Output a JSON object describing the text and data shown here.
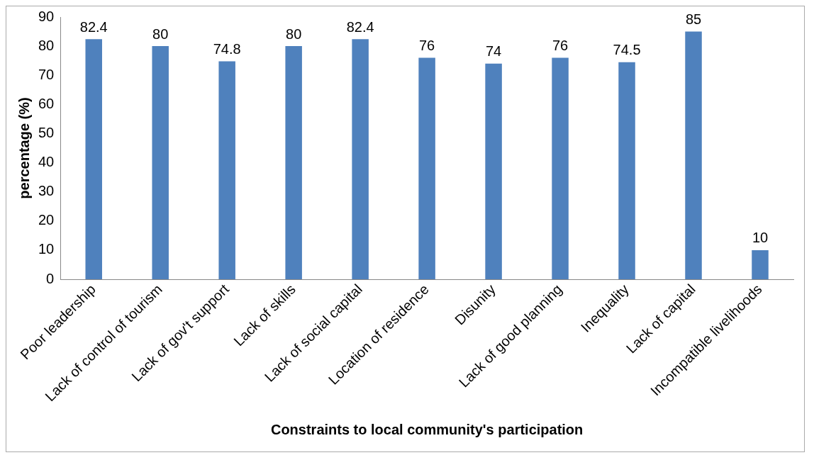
{
  "chart_data": {
    "type": "bar",
    "xlabel": "Constraints to local community's participation",
    "ylabel": "percentage (%)",
    "categories": [
      "Poor leadership",
      "Lack of control of tourism",
      "Lack of gov't support",
      "Lack of skills",
      "Lack of social capital",
      "Location of residence",
      "Disunity",
      "Lack of good planning",
      "Inequality",
      "Lack of capital",
      "Incompatible livelihoods"
    ],
    "values": [
      82.4,
      80,
      74.8,
      80,
      82.4,
      76,
      74,
      76,
      74.5,
      85,
      10
    ],
    "color": "#4f81bd",
    "ylim": [
      0,
      90
    ],
    "yticks": [
      0,
      10,
      20,
      30,
      40,
      50,
      60,
      70,
      80,
      90
    ],
    "grid": false,
    "data_labels": true
  }
}
